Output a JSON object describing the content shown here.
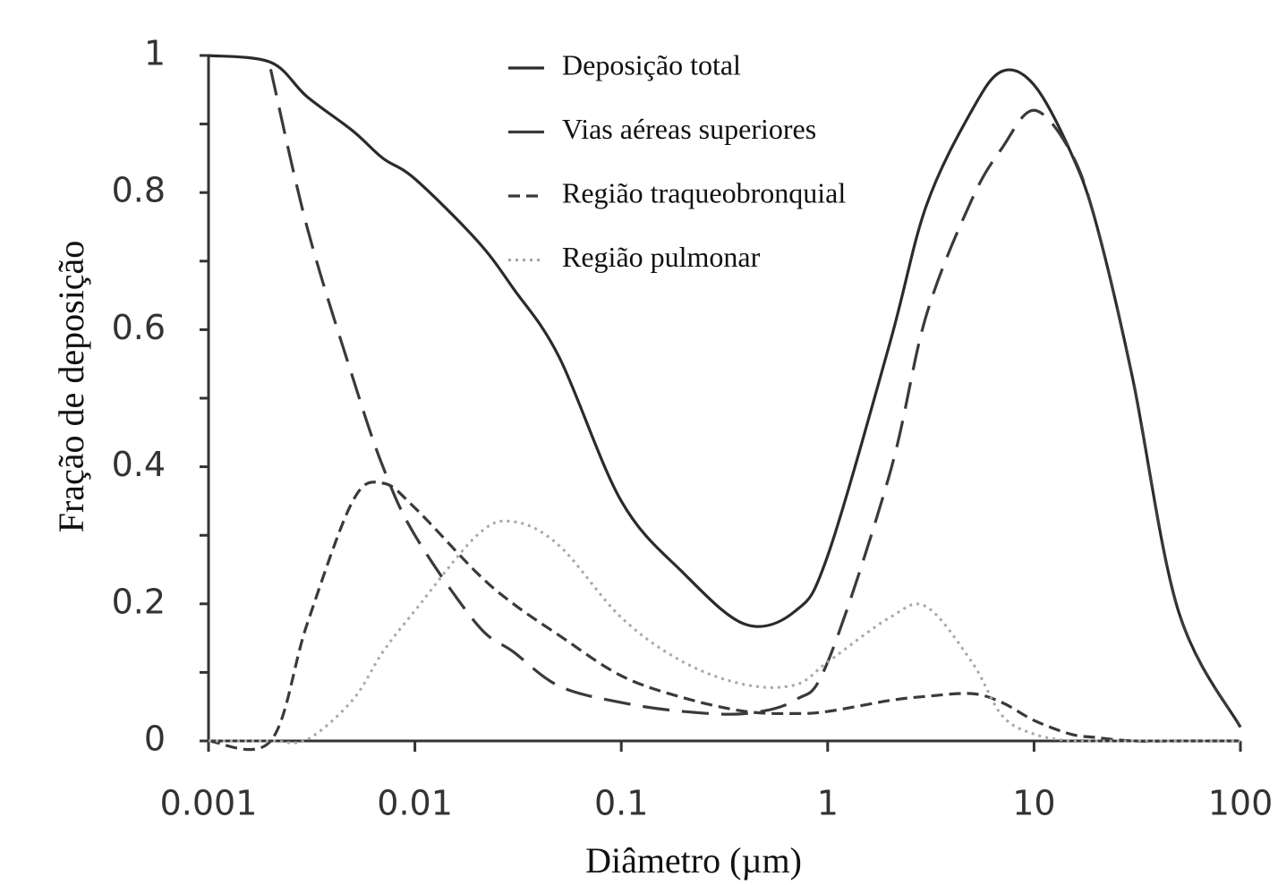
{
  "chart_data": {
    "type": "line",
    "xlabel": "Diâmetro (µm)",
    "ylabel": "Fração de deposição",
    "xscale": "log",
    "xlim": [
      0.001,
      100
    ],
    "xticks": [
      0.001,
      0.01,
      0.1,
      1,
      10,
      100
    ],
    "ylim": [
      0,
      1
    ],
    "yticks": [
      0,
      0.2,
      0.4,
      0.6,
      0.8,
      1
    ],
    "yminorticks": [
      0.1,
      0.3,
      0.5,
      0.7,
      0.9
    ],
    "legend_loc": "upper center",
    "x": [
      0.001,
      0.002,
      0.003,
      0.005,
      0.007,
      0.01,
      0.02,
      0.03,
      0.05,
      0.1,
      0.2,
      0.4,
      0.7,
      1,
      2,
      3,
      5,
      7,
      10,
      15,
      20,
      30,
      50,
      100
    ],
    "series": [
      {
        "name": "Deposição total",
        "color": "#2b2b2b",
        "dash": "solid",
        "values": [
          1,
          0.99,
          0.94,
          0.89,
          0.85,
          0.82,
          0.73,
          0.66,
          0.56,
          0.35,
          0.245,
          0.17,
          0.19,
          0.27,
          0.58,
          0.78,
          0.92,
          0.977,
          0.957,
          0.86,
          0.755,
          0.53,
          0.19,
          0.02
        ]
      },
      {
        "name": "Vias aéreas superiores",
        "color": "#3a3a3a",
        "dash": "long",
        "values": [
          null,
          0.98,
          0.75,
          0.53,
          0.4,
          0.3,
          0.17,
          0.13,
          0.08,
          0.056,
          0.043,
          0.04,
          0.06,
          0.115,
          0.39,
          0.62,
          0.79,
          0.865,
          0.92,
          0.86,
          0.755,
          0.53,
          0.19,
          0.02
        ]
      },
      {
        "name": "Região traqueobronquial",
        "color": "#3a3a3a",
        "dash": "short",
        "values": [
          0,
          0,
          0.17,
          0.35,
          0.376,
          0.34,
          0.245,
          0.2,
          0.154,
          0.095,
          0.063,
          0.043,
          0.04,
          0.043,
          0.059,
          0.065,
          0.069,
          0.056,
          0.03,
          0.01,
          0.005,
          0,
          0,
          0
        ]
      },
      {
        "name": "Região pulmonar",
        "color": "#a8a8a8",
        "dash": "dotted",
        "values": [
          0,
          0,
          0.002,
          0.06,
          0.13,
          0.19,
          0.3,
          0.32,
          0.285,
          0.18,
          0.115,
          0.082,
          0.082,
          0.115,
          0.18,
          0.196,
          0.115,
          0.037,
          0.01,
          0,
          0,
          0,
          0,
          0
        ]
      }
    ]
  }
}
